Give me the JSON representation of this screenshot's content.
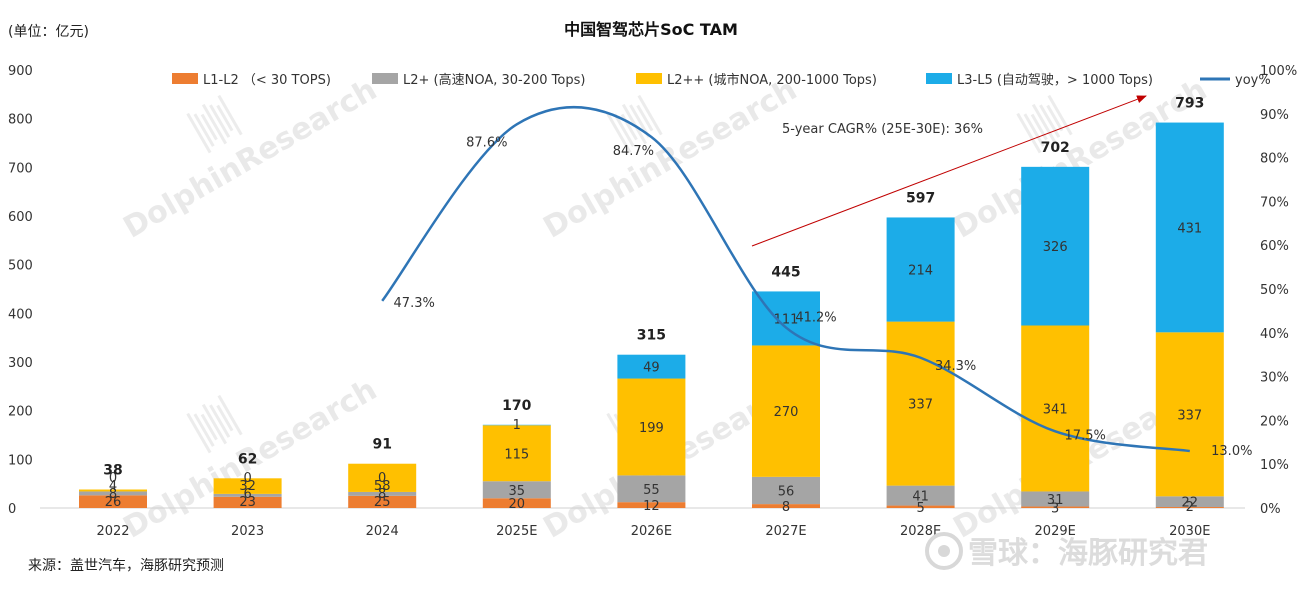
{
  "header": {
    "unit_label": "(单位：亿元)",
    "title": "中国智驾芯片SoC TAM"
  },
  "footer": {
    "source": "来源：盖世汽车，海豚研究预测"
  },
  "watermark": {
    "text": "DolphinResearch",
    "brand": "雪球：海豚研究君"
  },
  "annotation": {
    "cagr_text": "5-year CAGR% (25E-30E): 36%"
  },
  "colors": {
    "L1-L2": "#ED7D31",
    "L2+": "#A5A5A5",
    "L2++": "#FFC000",
    "L3-L5": "#1CACE8",
    "yoy": "#2E75B6",
    "arrow": "#C00000"
  },
  "chart_data": {
    "type": "bar",
    "stacked": true,
    "title": "中国智驾芯片SoC TAM",
    "categories": [
      "2022",
      "2023",
      "2024",
      "2025E",
      "2026E",
      "2027E",
      "2028E",
      "2029E",
      "2030E"
    ],
    "series": [
      {
        "name": "L1-L2 （< 30 TOPS)",
        "key": "L1-L2",
        "values": [
          26,
          23,
          25,
          20,
          12,
          8,
          5,
          3,
          2
        ]
      },
      {
        "name": "L2+ (高速NOA, 30-200 Tops)",
        "key": "L2+",
        "values": [
          8,
          6,
          8,
          35,
          55,
          56,
          41,
          31,
          22
        ]
      },
      {
        "name": "L2++ (城市NOA, 200-1000 Tops)",
        "key": "L2++",
        "values": [
          4,
          32,
          58,
          115,
          199,
          270,
          337,
          341,
          337
        ]
      },
      {
        "name": "L3-L5 (自动驾驶，> 1000 Tops)",
        "key": "L3-L5",
        "values": [
          0,
          0,
          0,
          1,
          49,
          111,
          214,
          326,
          431
        ]
      }
    ],
    "segment_labels": [
      [
        "26",
        "23",
        "25",
        "20",
        "12",
        "8",
        "5",
        "3",
        "2"
      ],
      [
        "8",
        "6",
        "8",
        "35",
        "55",
        "56",
        "41",
        "31",
        "22"
      ],
      [
        "4",
        "32",
        "58",
        "115",
        "199",
        "270",
        "337",
        "341",
        "337"
      ],
      [
        "0",
        "0",
        "0",
        "1",
        "49",
        "111",
        "214",
        "326",
        "431"
      ]
    ],
    "totals": [
      "38",
      "62",
      "91",
      "170",
      "315",
      "445",
      "597",
      "702",
      "793"
    ],
    "line": {
      "name": "yoy%",
      "axis": "right",
      "x_start_index": 2,
      "values": [
        47.3,
        87.6,
        84.7,
        41.2,
        34.3,
        17.5,
        13.0
      ],
      "labels": [
        "47.3%",
        "87.6%",
        "84.7%",
        "41.2%",
        "34.3%",
        "17.5%",
        "13.0%"
      ]
    },
    "ylim": [
      0,
      900
    ],
    "yticks": [
      "0",
      "100",
      "200",
      "300",
      "400",
      "500",
      "600",
      "700",
      "800",
      "900"
    ],
    "y2lim": [
      0,
      100
    ],
    "y2ticks": [
      "0%",
      "10%",
      "20%",
      "30%",
      "40%",
      "50%",
      "60%",
      "70%",
      "80%",
      "90%",
      "100%"
    ],
    "legend": [
      {
        "key": "L1-L2",
        "label": "L1-L2 （< 30 TOPS)",
        "kind": "box"
      },
      {
        "key": "L2+",
        "label": "L2+ (高速NOA, 30-200 Tops)",
        "kind": "box"
      },
      {
        "key": "L2++",
        "label": "L2++ (城市NOA, 200-1000 Tops)",
        "kind": "box"
      },
      {
        "key": "L3-L5",
        "label": "L3-L5 (自动驾驶，> 1000 Tops)",
        "kind": "box"
      },
      {
        "key": "yoy",
        "label": "yoy%",
        "kind": "line"
      }
    ],
    "legend_position": "top",
    "grid": false
  }
}
